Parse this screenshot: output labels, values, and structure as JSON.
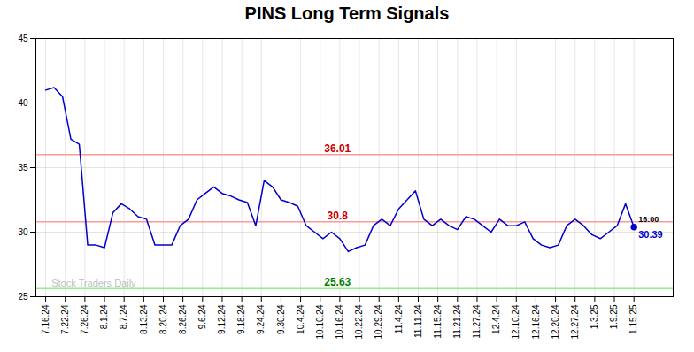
{
  "chart_data": {
    "type": "line",
    "title": "PINS Long Term Signals",
    "x": [
      0,
      0.4285714286,
      0.8571428571,
      1.2857142857,
      1.7142857143,
      2.1428571429,
      2.5714285714,
      3,
      3.4285714286,
      3.8571428571,
      4.2857142857,
      4.7142857143,
      5.1428571429,
      5.5714285714,
      6,
      6.4285714286,
      6.8571428571,
      7.2857142857,
      7.7142857143,
      8.1428571429,
      8.5714285714,
      9,
      9.4285714286,
      9.8571428571,
      10.2857142857,
      10.7142857143,
      11.1428571429,
      11.5714285714,
      12,
      12.4285714286,
      12.8571428571,
      13.2857142857,
      13.7142857143,
      14.1428571429,
      14.5714285714,
      15,
      15.4285714286,
      15.8571428571,
      16.2857142857,
      16.7142857143,
      17.1428571429,
      17.5714285714,
      18,
      18.4285714286,
      18.8571428571,
      19.2857142857,
      19.7142857143,
      20.1428571429,
      20.5714285714,
      21,
      21.4285714286,
      21.8571428571,
      22.2857142857,
      22.7142857143,
      23.1428571429,
      23.5714285714,
      24,
      24.4285714286,
      24.8571428571,
      25.2857142857,
      25.7142857143,
      26.1428571429,
      26.5714285714,
      27,
      27.4285714286,
      27.8571428571,
      28.2857142857,
      28.7142857143,
      29.1428571429,
      29.5714285714,
      30
    ],
    "values": [
      41.0,
      41.2,
      40.5,
      37.2,
      36.8,
      29.0,
      29.0,
      28.8,
      31.5,
      32.2,
      31.8,
      31.2,
      31.0,
      29.0,
      29.0,
      29.0,
      30.5,
      31.0,
      32.5,
      33.0,
      33.5,
      33.0,
      32.8,
      32.5,
      32.3,
      30.5,
      34.0,
      33.5,
      32.5,
      32.3,
      32.0,
      30.5,
      30.0,
      29.5,
      30.0,
      29.5,
      28.5,
      28.8,
      29.0,
      30.5,
      31.0,
      30.5,
      31.8,
      32.5,
      33.2,
      31.0,
      30.5,
      31.0,
      30.5,
      30.2,
      31.2,
      31.0,
      30.5,
      30.0,
      31.0,
      30.5,
      30.5,
      30.8,
      29.5,
      29.0,
      28.8,
      29.0,
      30.5,
      31.0,
      30.5,
      29.8,
      29.5,
      30.0,
      30.5,
      32.2,
      30.39
    ],
    "color": "#0000cc",
    "xlim": [
      -0.5,
      32
    ],
    "xticks": [
      {
        "value": 0,
        "label": "7.16.24"
      },
      {
        "value": 1,
        "label": "7.22.24"
      },
      {
        "value": 2,
        "label": "7.26.24"
      },
      {
        "value": 3,
        "label": "8.1.24"
      },
      {
        "value": 4,
        "label": "8.7.24"
      },
      {
        "value": 5,
        "label": "8.13.24"
      },
      {
        "value": 6,
        "label": "8.20.24"
      },
      {
        "value": 7,
        "label": "8.26.24"
      },
      {
        "value": 8,
        "label": "9.6.24"
      },
      {
        "value": 9,
        "label": "9.12.24"
      },
      {
        "value": 10,
        "label": "9.18.24"
      },
      {
        "value": 11,
        "label": "9.24.24"
      },
      {
        "value": 12,
        "label": "9.30.24"
      },
      {
        "value": 13,
        "label": "10.4.24"
      },
      {
        "value": 14,
        "label": "10.10.24"
      },
      {
        "value": 15,
        "label": "10.16.24"
      },
      {
        "value": 16,
        "label": "10.22.24"
      },
      {
        "value": 17,
        "label": "10.29.24"
      },
      {
        "value": 18,
        "label": "11.4.24"
      },
      {
        "value": 19,
        "label": "11.11.24"
      },
      {
        "value": 20,
        "label": "11.15.24"
      },
      {
        "value": 21,
        "label": "11.21.24"
      },
      {
        "value": 22,
        "label": "11.27.24"
      },
      {
        "value": 23,
        "label": "12.4.24"
      },
      {
        "value": 24,
        "label": "12.10.24"
      },
      {
        "value": 25,
        "label": "12.16.24"
      },
      {
        "value": 26,
        "label": "12.20.24"
      },
      {
        "value": 27,
        "label": "12.27.24"
      },
      {
        "value": 28,
        "label": "1.3.25"
      },
      {
        "value": 29,
        "label": "1.9.25"
      },
      {
        "value": 30,
        "label": "1.15.25"
      }
    ],
    "ylim": [
      25,
      45
    ],
    "yticks": [
      25,
      30,
      35,
      40,
      45
    ],
    "grid": true,
    "hlines": [
      {
        "value": 36.01,
        "color": "#ff9999",
        "label_color": "#cc0000"
      },
      {
        "value": 30.8,
        "color": "#ff9999",
        "label_color": "#cc0000"
      },
      {
        "value": 25.63,
        "color": "#90ee90",
        "label_color": "#008000"
      }
    ],
    "last_point": {
      "time": "16:00",
      "value": 30.39,
      "color": "#0000cc"
    },
    "watermark": "Stock Traders Daily",
    "watermark_color": "#c0c0c0"
  }
}
